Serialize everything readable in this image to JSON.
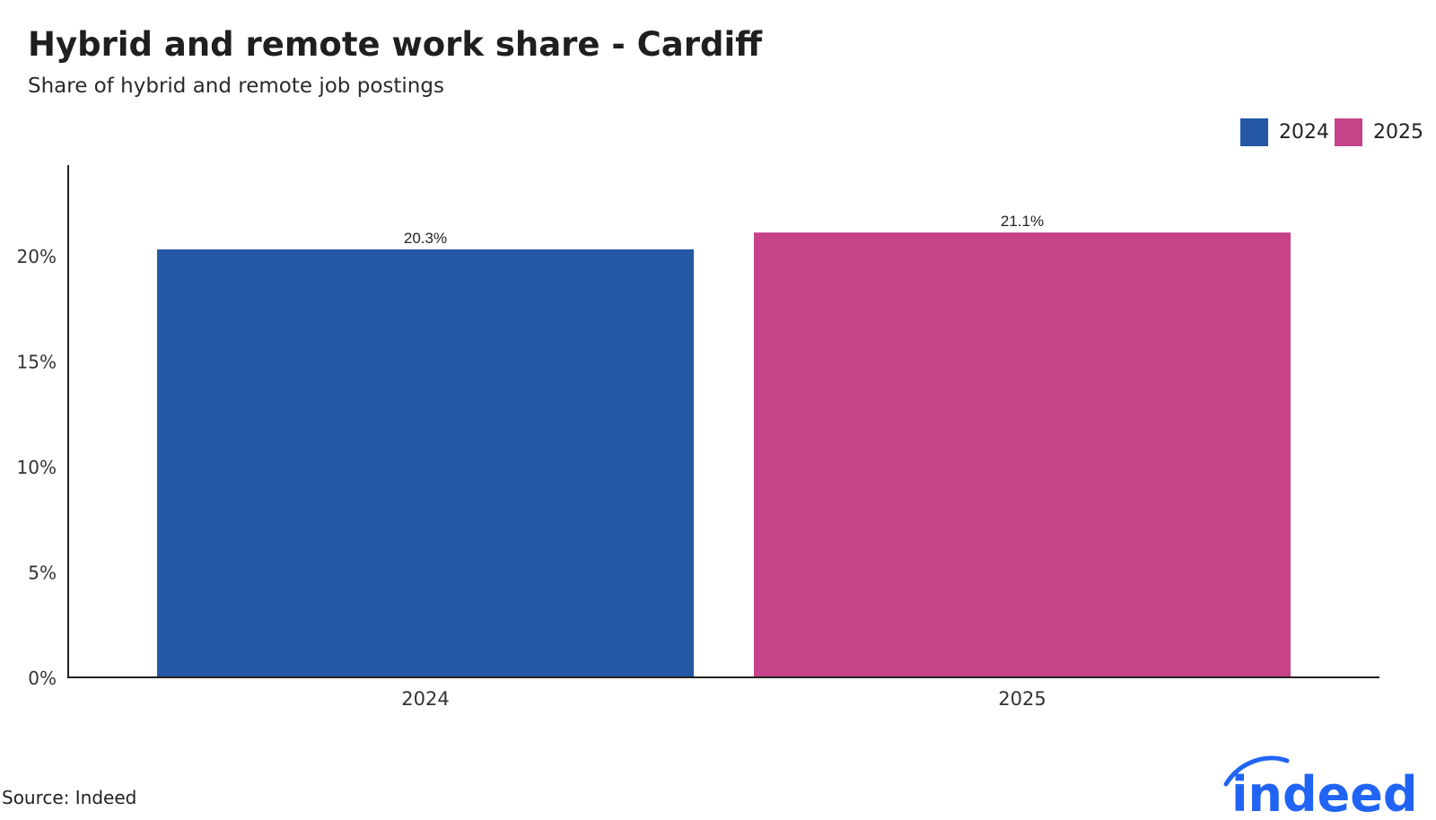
{
  "chart_data": {
    "type": "bar",
    "title": "Hybrid and remote work share - Cardiff",
    "subtitle": "Share of hybrid and remote job postings",
    "categories": [
      "2024",
      "2025"
    ],
    "values": [
      20.3,
      21.1
    ],
    "data_labels": [
      "20.3%",
      "21.1%"
    ],
    "colors": [
      "#2457a4",
      "#c64289"
    ],
    "yticks": [
      {
        "value": 0,
        "label": "0%"
      },
      {
        "value": 5,
        "label": "5%"
      },
      {
        "value": 10,
        "label": "10%"
      },
      {
        "value": 15,
        "label": "15%"
      },
      {
        "value": 20,
        "label": "20%"
      }
    ],
    "ylim": [
      0,
      24.3
    ],
    "grid": false,
    "legend_position": "top-right",
    "legend": [
      {
        "label": "2024",
        "color": "#2457a4"
      },
      {
        "label": "2025",
        "color": "#c64289"
      }
    ]
  },
  "footer": {
    "source": "Source: Indeed"
  },
  "logo": {
    "text": "indeed",
    "color": "#2164f3"
  }
}
